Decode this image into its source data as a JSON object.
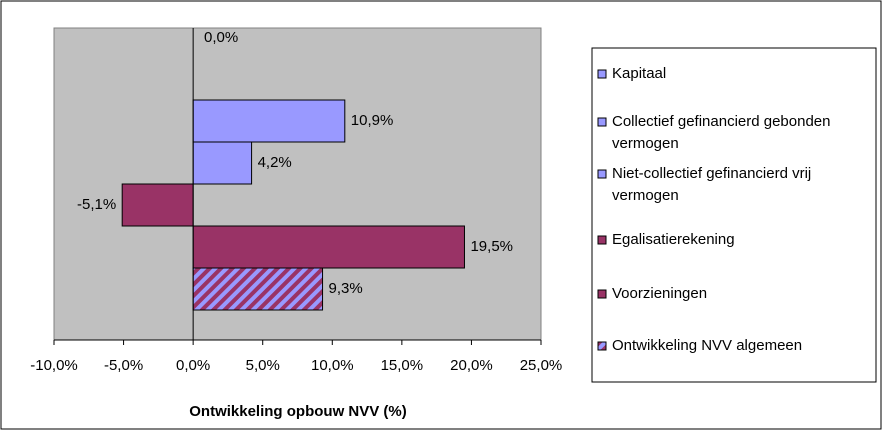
{
  "chart_data": {
    "type": "hbar",
    "title": "Ontwikkeling opbouw NVV (%)",
    "categories": [
      "Kapitaal",
      "Collectief gefinancierd gebonden vermogen",
      "Niet-collectief gefinancierd vrij vermogen",
      "Egalisatierekening",
      "Voorzieningen",
      "Ontwikkeling NVV algemeen"
    ],
    "values": [
      0,
      10.9,
      4.2,
      -5.1,
      19.5,
      9.3
    ],
    "value_labels": [
      "0,0%",
      "10,9%",
      "4,2%",
      "-5,1%",
      "19,5%",
      "9,3%"
    ],
    "colors": [
      "#9999ff",
      "#9999ff",
      "#9999ff",
      "#993366",
      "#993366",
      "#9999ff"
    ],
    "hatched": [
      false,
      false,
      false,
      false,
      false,
      true
    ],
    "xlim": [
      -10,
      25
    ],
    "xticks": [
      {
        "value": -10,
        "label": "-10,0%"
      },
      {
        "value": -5,
        "label": "-5,0%"
      },
      {
        "value": 0,
        "label": "0,0%"
      },
      {
        "value": 5,
        "label": "5,0%"
      },
      {
        "value": 10,
        "label": "10,0%"
      },
      {
        "value": 15,
        "label": "15,0%"
      },
      {
        "value": 20,
        "label": "20,0%"
      },
      {
        "value": 25,
        "label": "25,0%"
      }
    ],
    "legend_position": "right"
  }
}
